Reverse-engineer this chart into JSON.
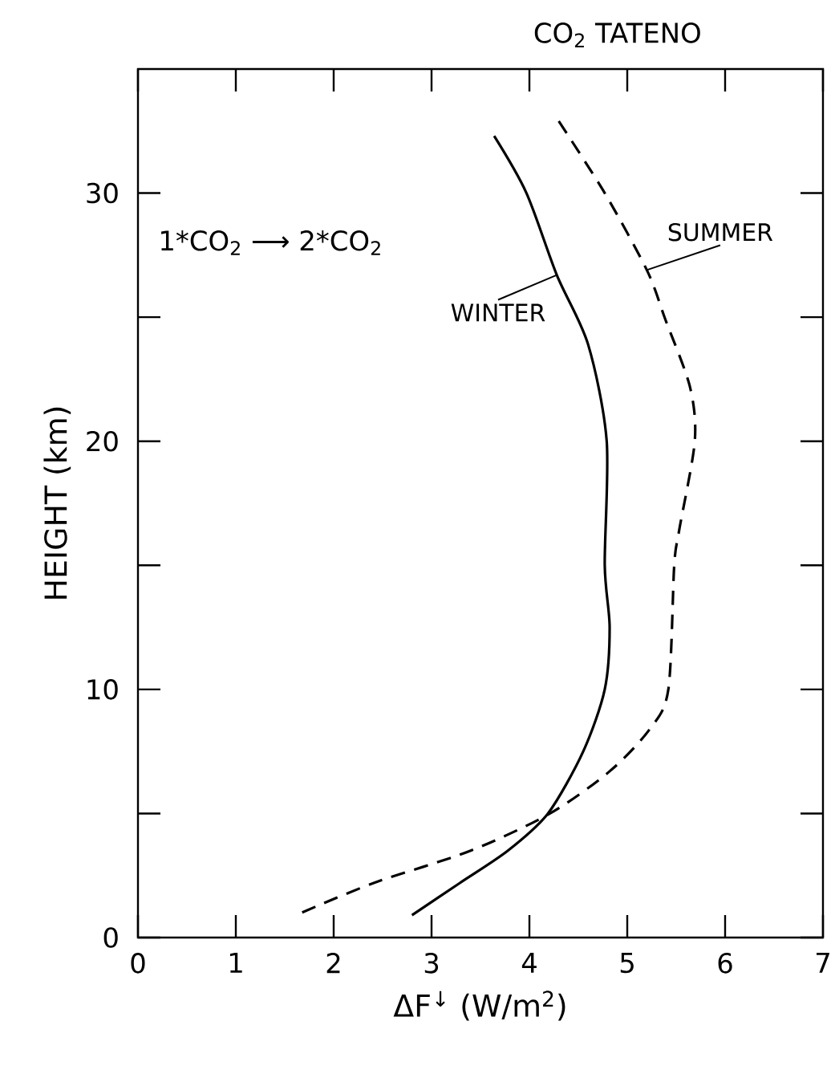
{
  "chart_data": {
    "type": "line",
    "title": "CO$_{2}$ TATENO",
    "xlabel": "ΔF$^{↓}$ (W/m$^{2}$)",
    "ylabel": "HEIGHT (km)",
    "annotations": [
      "1*CO$_{2}$ ⟶ 2*CO$_{2}$"
    ],
    "series": [
      {
        "name": "WINTER",
        "color": "#000000",
        "line_style": "solid",
        "x": [
          3.64,
          3.97,
          4.28,
          4.6,
          4.79,
          4.77,
          4.82,
          4.77,
          4.55,
          4.19,
          3.78,
          3.29,
          2.8
        ],
        "values": [
          32.3,
          30,
          26.7,
          23.9,
          20,
          15,
          12.5,
          10,
          7.5,
          5,
          3.5,
          2.2,
          0.9
        ]
      },
      {
        "name": "SUMMER",
        "color": "#000000",
        "line_style": "dashed",
        "x": [
          4.3,
          4.77,
          5.2,
          5.39,
          5.64,
          5.69,
          5.53,
          5.48,
          5.42,
          5.23,
          4.82,
          4.21,
          3.4,
          2.41,
          1.67
        ],
        "values": [
          32.9,
          30,
          26.9,
          24.9,
          22.2,
          20,
          16.4,
          15,
          10,
          8.4,
          6.7,
          5,
          3.5,
          2.2,
          1.0
        ]
      }
    ],
    "xlim": [
      0,
      7
    ],
    "ylim": [
      0,
      35
    ],
    "xticks": [
      0,
      1,
      2,
      3,
      4,
      5,
      6,
      7
    ],
    "yticks": [
      0,
      {
        "value": 5,
        "label": null
      },
      10,
      {
        "value": 15,
        "label": null
      },
      20,
      {
        "value": 25,
        "label": null
      },
      30
    ],
    "grid": false,
    "marker": "none"
  }
}
